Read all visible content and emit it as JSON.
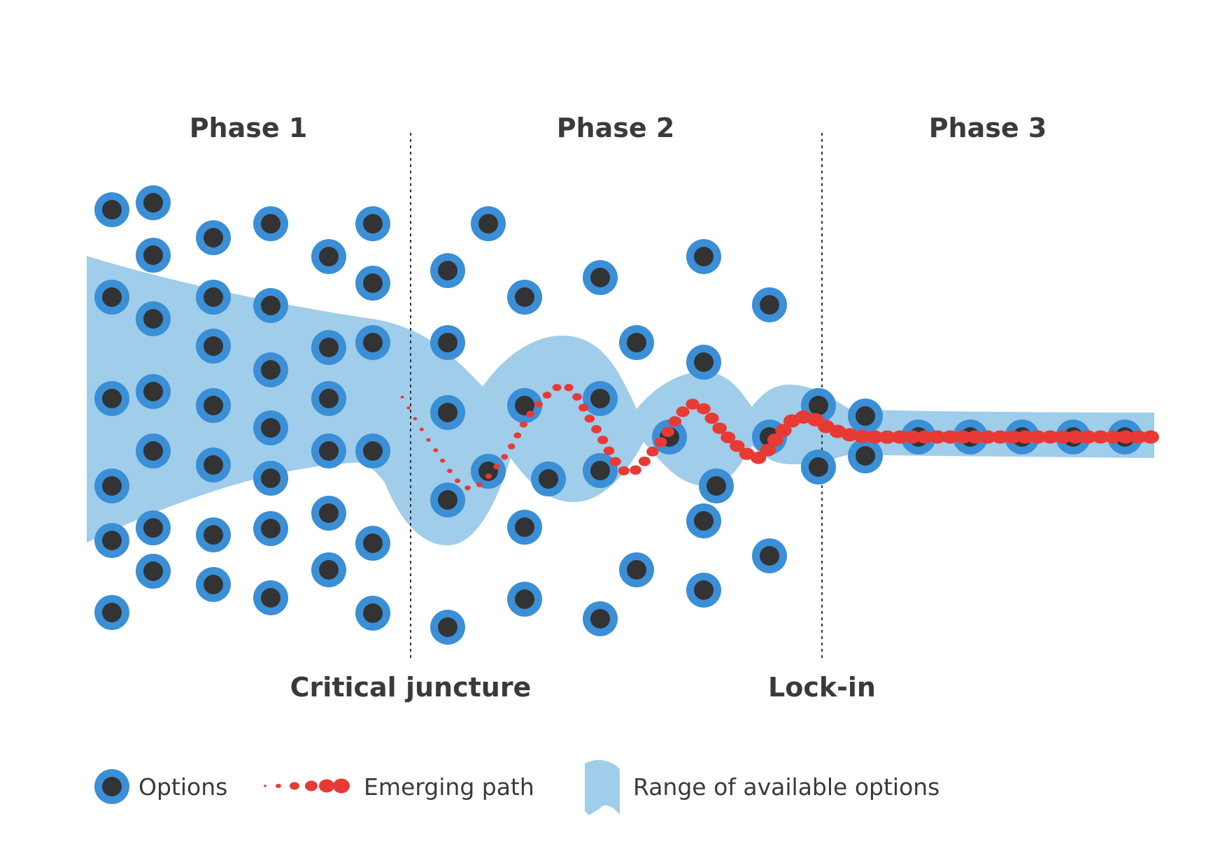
{
  "phases": [
    {
      "label": "Phase 1"
    },
    {
      "label": "Phase 2"
    },
    {
      "label": "Phase 3"
    }
  ],
  "markers": [
    {
      "label": "Critical juncture"
    },
    {
      "label": "Lock-in"
    }
  ],
  "legend": {
    "options": "Options",
    "path": "Emerging path",
    "range": "Range of available options"
  },
  "colors": {
    "option_ring": "#3a8fd6",
    "option_core": "#333333",
    "range_fill": "#9fcdea",
    "path": "#e83a35",
    "text": "#3a3a3a"
  }
}
